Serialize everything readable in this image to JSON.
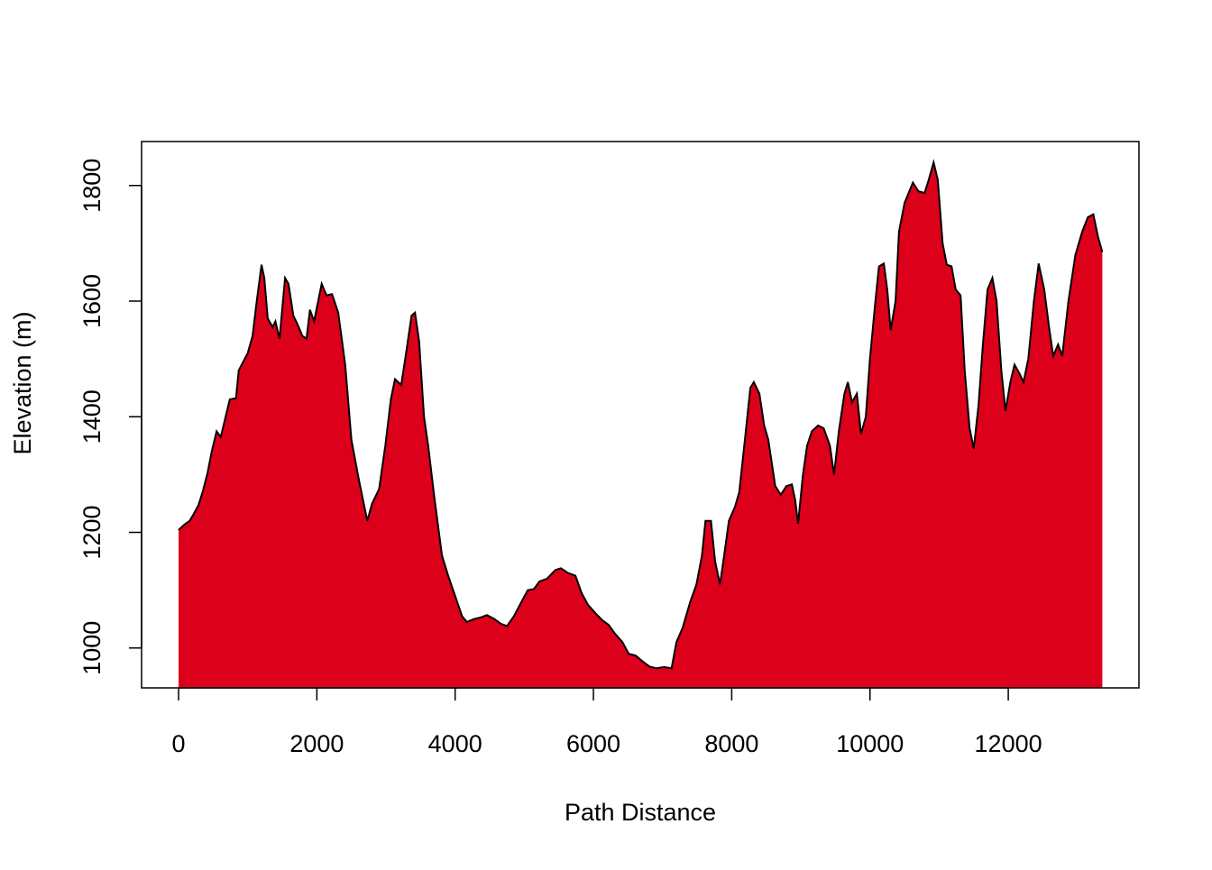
{
  "chart_data": {
    "type": "area",
    "xlabel": "Path Distance",
    "ylabel": "Elevation  (m)",
    "color": "#dc001a",
    "line_color": "#000000",
    "x": [
      0,
      90,
      160,
      220,
      290,
      350,
      420,
      480,
      550,
      610,
      680,
      740,
      830,
      870,
      1000,
      1070,
      1130,
      1200,
      1240,
      1290,
      1360,
      1400,
      1460,
      1540,
      1590,
      1660,
      1720,
      1790,
      1850,
      1900,
      1960,
      2070,
      2140,
      2220,
      2310,
      2410,
      2500,
      2610,
      2670,
      2730,
      2800,
      2900,
      2990,
      3070,
      3130,
      3220,
      3290,
      3370,
      3420,
      3480,
      3550,
      3610,
      3700,
      3810,
      3900,
      4000,
      4100,
      4170,
      4270,
      4370,
      4460,
      4570,
      4660,
      4750,
      4850,
      4960,
      5050,
      5140,
      5220,
      5330,
      5450,
      5530,
      5630,
      5740,
      5830,
      5920,
      6030,
      6130,
      6220,
      6310,
      6420,
      6510,
      6610,
      6700,
      6810,
      6910,
      7020,
      7130,
      7200,
      7290,
      7400,
      7490,
      7570,
      7620,
      7700,
      7760,
      7830,
      7890,
      7960,
      8050,
      8110,
      8190,
      8270,
      8320,
      8400,
      8470,
      8530,
      8630,
      8710,
      8790,
      8870,
      8920,
      8960,
      9030,
      9090,
      9160,
      9250,
      9330,
      9420,
      9480,
      9550,
      9630,
      9680,
      9740,
      9810,
      9870,
      9940,
      10000,
      10070,
      10130,
      10200,
      10250,
      10300,
      10370,
      10420,
      10500,
      10570,
      10620,
      10700,
      10790,
      10850,
      10920,
      10980,
      11050,
      11110,
      11180,
      11240,
      11310,
      11370,
      11440,
      11500,
      11570,
      11630,
      11700,
      11770,
      11830,
      11900,
      11960,
      12030,
      12090,
      12160,
      12220,
      12290,
      12370,
      12440,
      12520,
      12590,
      12650,
      12720,
      12780,
      12870,
      12970,
      13070,
      13150,
      13230,
      13300,
      13360
    ],
    "values": [
      1204,
      1214,
      1220,
      1232,
      1248,
      1271,
      1303,
      1340,
      1375,
      1365,
      1400,
      1430,
      1432,
      1480,
      1510,
      1540,
      1600,
      1663,
      1640,
      1570,
      1555,
      1565,
      1535,
      1640,
      1630,
      1575,
      1560,
      1540,
      1535,
      1585,
      1565,
      1630,
      1610,
      1612,
      1580,
      1490,
      1360,
      1290,
      1255,
      1220,
      1250,
      1275,
      1350,
      1430,
      1465,
      1455,
      1510,
      1575,
      1580,
      1530,
      1400,
      1350,
      1260,
      1160,
      1125,
      1090,
      1055,
      1045,
      1050,
      1053,
      1057,
      1050,
      1042,
      1038,
      1055,
      1080,
      1100,
      1102,
      1115,
      1120,
      1135,
      1138,
      1130,
      1125,
      1095,
      1075,
      1060,
      1048,
      1040,
      1025,
      1010,
      990,
      987,
      978,
      968,
      965,
      967,
      965,
      1010,
      1035,
      1080,
      1110,
      1160,
      1220,
      1220,
      1150,
      1110,
      1160,
      1220,
      1245,
      1270,
      1360,
      1450,
      1460,
      1440,
      1385,
      1360,
      1280,
      1265,
      1280,
      1283,
      1255,
      1215,
      1300,
      1350,
      1375,
      1385,
      1380,
      1350,
      1300,
      1375,
      1440,
      1460,
      1425,
      1440,
      1370,
      1400,
      1500,
      1590,
      1660,
      1665,
      1620,
      1550,
      1600,
      1720,
      1770,
      1790,
      1805,
      1790,
      1787,
      1810,
      1840,
      1810,
      1700,
      1663,
      1660,
      1620,
      1610,
      1480,
      1380,
      1345,
      1420,
      1520,
      1620,
      1640,
      1600,
      1480,
      1410,
      1460,
      1490,
      1475,
      1460,
      1500,
      1600,
      1665,
      1620,
      1555,
      1505,
      1525,
      1505,
      1600,
      1680,
      1720,
      1745,
      1750,
      1710,
      1685
    ],
    "xlim": [
      -535,
      13890
    ],
    "ylim": [
      931,
      1876
    ],
    "xticks": [
      0,
      2000,
      4000,
      6000,
      8000,
      10000,
      12000
    ],
    "yticks": [
      1000,
      1200,
      1400,
      1600,
      1800
    ]
  }
}
